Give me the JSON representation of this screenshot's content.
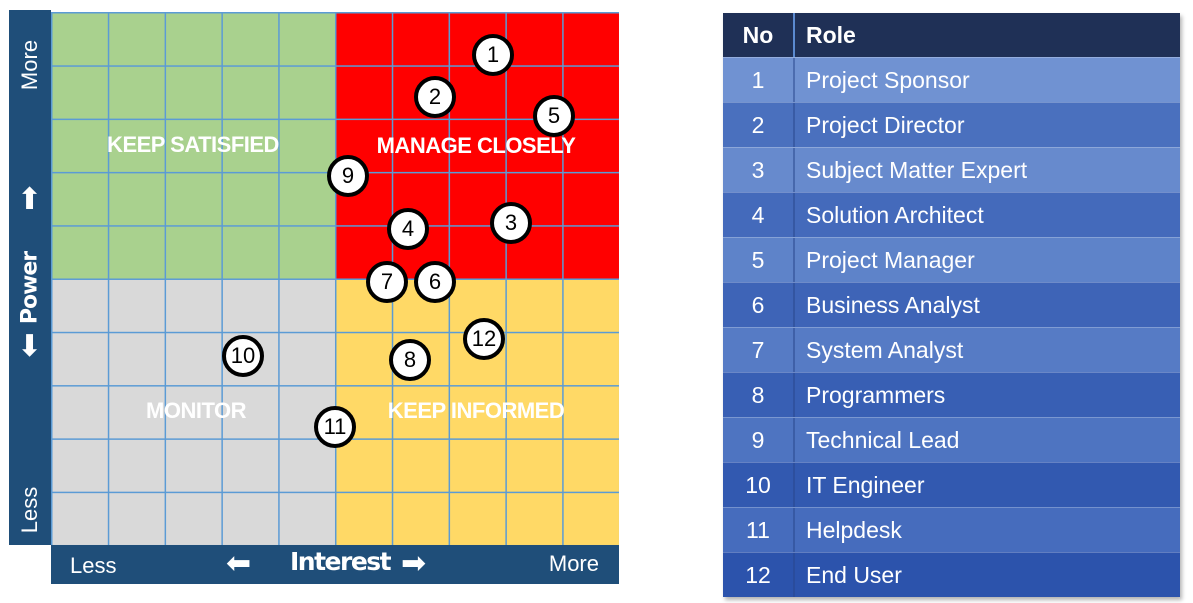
{
  "y_axis": {
    "more": "More",
    "label": "Power",
    "less": "Less",
    "up_icon": "arrow-up-icon",
    "down_icon": "arrow-down-icon"
  },
  "x_axis": {
    "less": "Less",
    "label": "Interest",
    "more": "More",
    "left_icon": "arrow-left-icon",
    "right_icon": "arrow-right-icon"
  },
  "quadrants": {
    "keep_satisfied": {
      "label": "KEEP SATISFIED",
      "color": "#a9d18e"
    },
    "manage_closely": {
      "label": "MANAGE CLOSELY",
      "color": "#ff0000"
    },
    "monitor": {
      "label": "MONITOR",
      "color": "#d9d9d9"
    },
    "keep_informed": {
      "label": "KEEP INFORMED",
      "color": "#ffd966"
    }
  },
  "markers": [
    "1",
    "2",
    "3",
    "4",
    "5",
    "6",
    "7",
    "8",
    "9",
    "10",
    "11",
    "12"
  ],
  "table": {
    "headers": {
      "no": "No",
      "role": "Role"
    },
    "rows": [
      {
        "no": "1",
        "role": "Project Sponsor"
      },
      {
        "no": "2",
        "role": "Project Director"
      },
      {
        "no": "3",
        "role": "Subject Matter Expert"
      },
      {
        "no": "4",
        "role": "Solution Architect"
      },
      {
        "no": "5",
        "role": "Project Manager"
      },
      {
        "no": "6",
        "role": "Business Analyst"
      },
      {
        "no": "7",
        "role": "System Analyst"
      },
      {
        "no": "8",
        "role": "Programmers"
      },
      {
        "no": "9",
        "role": "Technical Lead"
      },
      {
        "no": "10",
        "role": "IT Engineer"
      },
      {
        "no": "11",
        "role": "Helpdesk"
      },
      {
        "no": "12",
        "role": "End User"
      }
    ]
  }
}
